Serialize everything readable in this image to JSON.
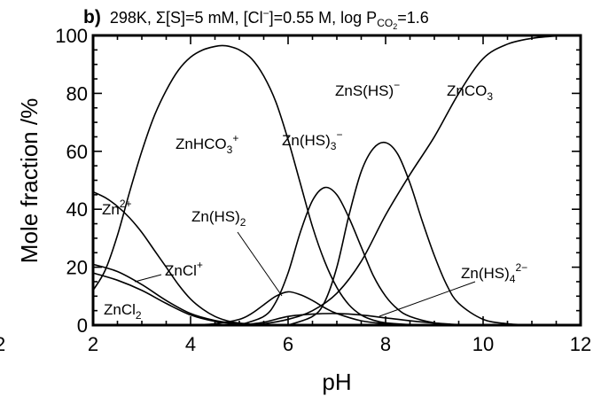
{
  "chart_data": {
    "type": "line",
    "title": {
      "panel": "b)",
      "temperature": "298K",
      "sulfur": "Σ[S]=5 mM",
      "chloride_prefix": "[Cl",
      "chloride_charge": "−",
      "chloride_suffix": "]=0.55 M",
      "pco2_prefix": "log P",
      "pco2_sub1": "CO",
      "pco2_sub2": "2",
      "pco2_suffix": "=1.6"
    },
    "xlabel": "pH",
    "ylabel": "Mole fraction /%",
    "xlim": [
      2,
      12
    ],
    "ylim": [
      0,
      100
    ],
    "x_ticks": [
      2,
      4,
      6,
      8,
      10,
      12
    ],
    "y_ticks": [
      0,
      20,
      40,
      60,
      80,
      100
    ],
    "x_tick_labels": [
      "2",
      "4",
      "6",
      "8",
      "10",
      "12"
    ],
    "y_tick_labels": [
      "0",
      "20",
      "40",
      "60",
      "80",
      "100"
    ],
    "clipped_tick_label": "2",
    "grid": false,
    "series": [
      {
        "key": "zn2",
        "label": {
          "base": "Zn",
          "sup": "2+"
        },
        "x": [
          2.0,
          2.25,
          2.5,
          2.75,
          3.0,
          3.25,
          3.5,
          3.75,
          4.0,
          4.25,
          4.5,
          4.75,
          5.0,
          5.5
        ],
        "y": [
          46,
          44,
          41,
          37,
          32,
          26,
          20,
          14,
          9,
          5.5,
          3,
          1.5,
          0.7,
          0
        ]
      },
      {
        "key": "zncl",
        "label": {
          "base": "ZnCl",
          "sup": "+"
        },
        "x": [
          2.0,
          2.5,
          3.0,
          3.5,
          4.0,
          4.5,
          5.0,
          5.5
        ],
        "y": [
          21,
          18.5,
          14,
          8.5,
          4,
          1.6,
          0.5,
          0
        ]
      },
      {
        "key": "zncl2",
        "label": {
          "base": "ZnCl",
          "sub": "2"
        },
        "x": [
          2.0,
          2.5,
          3.0,
          3.5,
          4.0,
          4.5,
          5.0,
          5.5
        ],
        "y": [
          18,
          15.5,
          12,
          7.5,
          3.5,
          1.3,
          0.4,
          0
        ]
      },
      {
        "key": "znhco3",
        "label": {
          "base": "ZnHCO",
          "sub": "3",
          "sup": "+"
        },
        "x": [
          2.0,
          2.25,
          2.5,
          2.75,
          3.0,
          3.25,
          3.5,
          3.75,
          4.0,
          4.25,
          4.5,
          4.65,
          4.8,
          5.0,
          5.25,
          5.5,
          5.75,
          6.0,
          6.25,
          6.5,
          6.75,
          7.0,
          7.25,
          7.5,
          7.75,
          8.0,
          8.5,
          9.0
        ],
        "y": [
          12,
          19,
          31,
          46,
          60,
          72,
          81,
          88,
          92.5,
          95,
          96.2,
          96.5,
          96.2,
          95,
          92,
          86,
          77,
          64,
          49,
          34,
          22,
          13,
          7,
          3.5,
          1.7,
          0.8,
          0.2,
          0
        ]
      },
      {
        "key": "znhs2",
        "label": {
          "base": "Zn(HS)",
          "sub": "2"
        },
        "x": [
          4.0,
          4.5,
          5.0,
          5.25,
          5.5,
          5.75,
          6.0,
          6.25,
          6.5,
          6.75,
          7.0,
          7.5,
          8.0,
          8.5
        ],
        "y": [
          0,
          0.5,
          2,
          4,
          7,
          10,
          11.5,
          10.5,
          8.5,
          6,
          4,
          1.5,
          0.5,
          0
        ]
      },
      {
        "key": "znhs3",
        "label": {
          "base": "Zn(HS)",
          "sub": "3",
          "sup": "−"
        },
        "x": [
          5.0,
          5.5,
          5.75,
          6.0,
          6.25,
          6.5,
          6.75,
          7.0,
          7.25,
          7.5,
          7.75,
          8.0,
          8.25,
          8.5,
          9.0,
          9.5
        ],
        "y": [
          0,
          3,
          8,
          18,
          32,
          43,
          47.5,
          45,
          37,
          27,
          17,
          10,
          5.5,
          3,
          0.8,
          0
        ]
      },
      {
        "key": "znshs",
        "label": {
          "base": "ZnS(HS)",
          "sup": "−"
        },
        "x": [
          6.0,
          6.5,
          6.75,
          7.0,
          7.25,
          7.5,
          7.75,
          8.0,
          8.25,
          8.5,
          8.75,
          9.0,
          9.25,
          9.5,
          10.0,
          10.5,
          11.0
        ],
        "y": [
          0,
          3,
          8,
          20,
          38,
          53,
          61,
          63,
          59,
          49,
          36,
          24,
          14,
          7.5,
          2,
          0.5,
          0
        ]
      },
      {
        "key": "znco3",
        "label": {
          "base": "ZnCO",
          "sub": "3"
        },
        "x": [
          5.0,
          5.5,
          6.0,
          6.5,
          7.0,
          7.5,
          8.0,
          8.5,
          9.0,
          9.5,
          10.0,
          10.5,
          11.0,
          11.5,
          12.0
        ],
        "y": [
          0,
          0.5,
          2,
          5,
          11,
          22,
          38,
          52,
          65,
          80,
          92,
          97,
          99,
          99.8,
          100
        ]
      },
      {
        "key": "znhs4",
        "label": {
          "base": "Zn(HS)",
          "sub": "4",
          "sup": "2−"
        },
        "x": [
          5.0,
          5.5,
          6.0,
          6.5,
          7.0,
          7.5,
          8.0,
          8.5,
          9.0,
          9.5,
          10.0
        ],
        "y": [
          0,
          1,
          3,
          3.8,
          4,
          3.5,
          2.5,
          1.5,
          0.7,
          0.2,
          0
        ]
      }
    ]
  }
}
